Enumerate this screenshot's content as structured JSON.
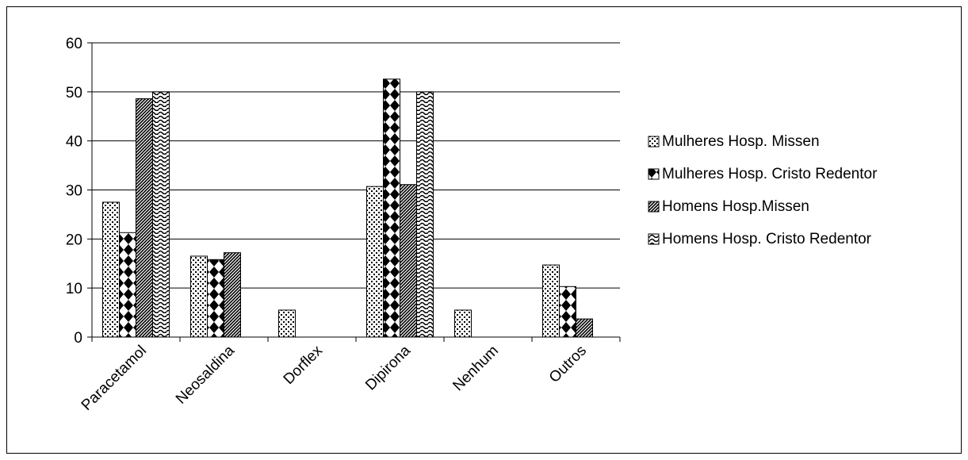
{
  "chart_data": {
    "type": "bar",
    "title": "",
    "xlabel": "",
    "ylabel": "",
    "ylim": [
      0,
      60
    ],
    "yticks": [
      0,
      10,
      20,
      30,
      40,
      50,
      60
    ],
    "grid": true,
    "legend_position": "right",
    "categories": [
      "Paracetamol",
      "Neosaldina",
      "Dorflex",
      "Dipirona",
      "Nenhum",
      "Outros"
    ],
    "series": [
      {
        "name": "Mulheres Hosp. Missen",
        "pattern": "dots",
        "values": [
          27.5,
          16.5,
          5.5,
          30.7,
          5.5,
          14.7
        ]
      },
      {
        "name": "Mulheres Hosp. Cristo Redentor",
        "pattern": "diamonds",
        "values": [
          21.3,
          15.8,
          0,
          52.6,
          0,
          10.3
        ]
      },
      {
        "name": "Homens Hosp.Missen",
        "pattern": "diagonal",
        "values": [
          48.6,
          17.2,
          0,
          31.1,
          0,
          3.7
        ]
      },
      {
        "name": "Homens Hosp. Cristo Redentor",
        "pattern": "waves",
        "values": [
          50,
          0,
          0,
          50,
          0,
          0
        ]
      }
    ],
    "colors": {
      "ink": "#000000",
      "background": "#ffffff",
      "grid": "#000000"
    }
  }
}
